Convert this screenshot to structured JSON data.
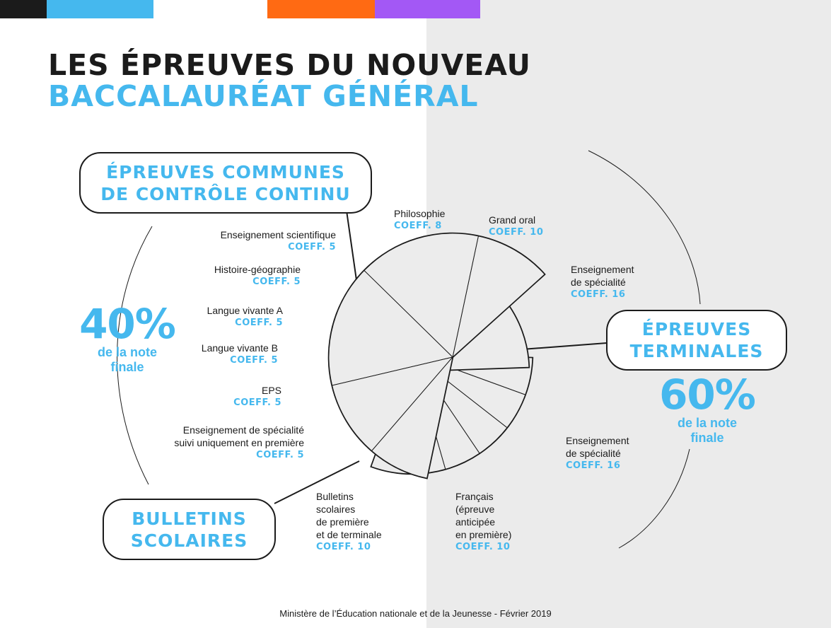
{
  "colors": {
    "dark": "#1b1b1b",
    "blue": "#45b8ee",
    "orange": "#ff6a13",
    "purple": "#a358f5",
    "slice_fill": "#ececec",
    "grey_bg": "#ebebeb"
  },
  "title": {
    "line1": "LES ÉPREUVES DU NOUVEAU",
    "line2": "BACCALAURÉAT GÉNÉRAL"
  },
  "groups": {
    "communes": {
      "label_line1": "ÉPREUVES COMMUNES",
      "label_line2": "DE CONTRÔLE CONTINU",
      "percent": "40%",
      "caption_line1": "de la note",
      "caption_line2": "finale"
    },
    "bulletins": {
      "label_line1": "BULLETINS",
      "label_line2": "SCOLAIRES"
    },
    "terminales": {
      "label_line1": "ÉPREUVES",
      "label_line2": "TERMINALES",
      "percent": "60%",
      "caption_line1": "de la note",
      "caption_line2": "finale"
    }
  },
  "chart_data": {
    "type": "pie",
    "slices": [
      {
        "group": "communes",
        "lines": [
          "Enseignement scientifique"
        ],
        "coef": "COEFF. 5",
        "value": 5
      },
      {
        "group": "communes",
        "lines": [
          "Histoire-géographie"
        ],
        "coef": "COEFF. 5",
        "value": 5
      },
      {
        "group": "communes",
        "lines": [
          "Langue vivante A"
        ],
        "coef": "COEFF. 5",
        "value": 5
      },
      {
        "group": "communes",
        "lines": [
          "Langue vivante B"
        ],
        "coef": "COEFF. 5",
        "value": 5
      },
      {
        "group": "communes",
        "lines": [
          "EPS"
        ],
        "coef": "COEFF. 5",
        "value": 5
      },
      {
        "group": "communes",
        "lines": [
          "Enseignement de spécialité",
          "suivi uniquement en première"
        ],
        "coef": "COEFF. 5",
        "value": 5
      },
      {
        "group": "bulletins",
        "lines": [
          "Bulletins",
          "scolaires",
          "de première",
          "et de terminale"
        ],
        "coef": "COEFF. 10",
        "value": 10
      },
      {
        "group": "terminales",
        "lines": [
          "Français",
          "(épreuve",
          "anticipée",
          "en première)"
        ],
        "coef": "COEFF. 10",
        "value": 10
      },
      {
        "group": "terminales",
        "lines": [
          "Enseignement",
          "de spécialité"
        ],
        "coef": "COEFF. 16",
        "value": 16
      },
      {
        "group": "terminales",
        "lines": [
          "Enseignement",
          "de spécialité"
        ],
        "coef": "COEFF. 16",
        "value": 16
      },
      {
        "group": "terminales",
        "lines": [
          "Grand oral"
        ],
        "coef": "COEFF. 10",
        "value": 10
      },
      {
        "group": "terminales",
        "lines": [
          "Philosophie"
        ],
        "coef": "COEFF. 8",
        "value": 8
      }
    ]
  },
  "footer": "Ministère de l’Éducation nationale et de la Jeunesse - Février 2019"
}
